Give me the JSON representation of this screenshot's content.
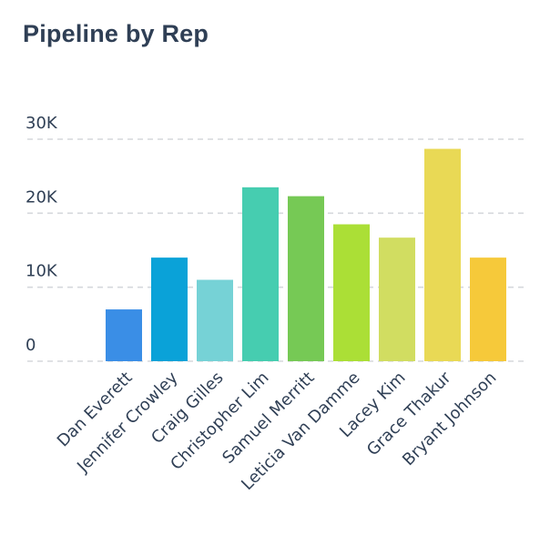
{
  "chart_data": {
    "type": "bar",
    "title": "Pipeline by Rep",
    "xlabel": "",
    "ylabel": "",
    "ylim": [
      0,
      30000
    ],
    "yticks": [
      0,
      10000,
      20000,
      30000
    ],
    "ytick_labels": [
      "0",
      "10K",
      "20K",
      "30K"
    ],
    "grid": true,
    "legend": "none",
    "categories": [
      "Dan Everett",
      "Jennifer Crowley",
      "Craig Gilles",
      "Christopher Lim",
      "Samuel Merritt",
      "Leticia Van Damme",
      "Lacey Kim",
      "Grace Thakur",
      "Bryant Johnson"
    ],
    "values": [
      7000,
      14000,
      11000,
      23500,
      22300,
      18500,
      16700,
      28700,
      14000
    ],
    "colors": [
      "#3a8ee6",
      "#0aa2d8",
      "#76d2d6",
      "#46cdb0",
      "#76c955",
      "#abdf36",
      "#d1dd61",
      "#e9d955",
      "#f6c93a"
    ]
  }
}
